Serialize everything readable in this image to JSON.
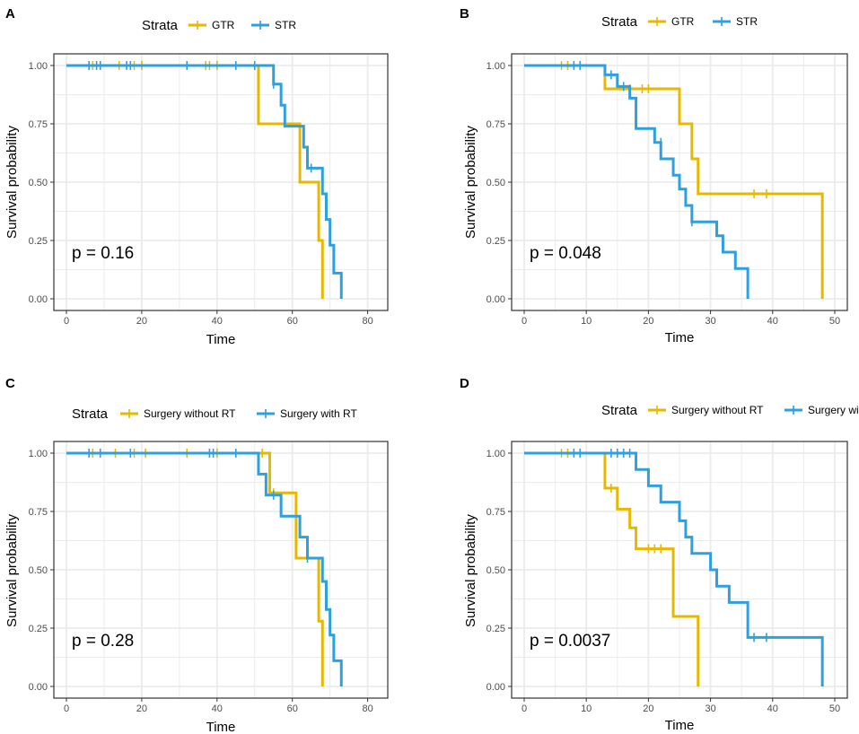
{
  "colors": {
    "gtr": "#E7B800",
    "str": "#2E9FDF",
    "grid": "#EBEBEB",
    "frame": "#333333",
    "text": "#222222"
  },
  "chart_data": [
    {
      "panel": "A",
      "type": "line",
      "title": "",
      "legend_title": "Strata",
      "legend_position": "top",
      "xlabel": "Time",
      "ylabel": "Survival probability",
      "xlim": [
        0,
        82
      ],
      "ylim": [
        0,
        1
      ],
      "xticks": [
        0,
        20,
        40,
        60,
        80
      ],
      "yticks": [
        0,
        0.25,
        0.5,
        0.75,
        1.0
      ],
      "ytick_labels": [
        "0.00",
        "0.25",
        "0.50",
        "0.75",
        "1.00"
      ],
      "pvalue": "p = 0.16",
      "series": [
        {
          "name": "GTR",
          "color_key": "gtr",
          "steps": [
            [
              0,
              1
            ],
            [
              51,
              0.75
            ],
            [
              62,
              0.5
            ],
            [
              67,
              0.25
            ],
            [
              68,
              0
            ]
          ],
          "censored": [
            [
              7,
              1
            ],
            [
              14,
              1
            ],
            [
              18,
              1
            ],
            [
              20,
              1
            ],
            [
              37,
              1
            ],
            [
              38,
              1
            ],
            [
              40,
              1
            ]
          ]
        },
        {
          "name": "STR",
          "color_key": "str",
          "steps": [
            [
              0,
              1
            ],
            [
              55,
              0.92
            ],
            [
              57,
              0.83
            ],
            [
              58,
              0.74
            ],
            [
              63,
              0.65
            ],
            [
              64,
              0.56
            ],
            [
              68,
              0.45
            ],
            [
              69,
              0.34
            ],
            [
              70,
              0.23
            ],
            [
              71,
              0.11
            ],
            [
              73,
              0
            ]
          ],
          "censored": [
            [
              6,
              1
            ],
            [
              8,
              1
            ],
            [
              9,
              1
            ],
            [
              16,
              1
            ],
            [
              17,
              1
            ],
            [
              32,
              1
            ],
            [
              45,
              1
            ],
            [
              50,
              1
            ],
            [
              55,
              0.92
            ],
            [
              65,
              0.56
            ]
          ]
        }
      ]
    },
    {
      "panel": "B",
      "type": "line",
      "title": "",
      "legend_title": "Strata",
      "legend_position": "top",
      "xlabel": "Time",
      "ylabel": "Survival probability",
      "xlim": [
        0,
        50
      ],
      "ylim": [
        0,
        1
      ],
      "xticks": [
        0,
        10,
        20,
        30,
        40,
        50
      ],
      "yticks": [
        0,
        0.25,
        0.5,
        0.75,
        1.0
      ],
      "ytick_labels": [
        "0.00",
        "0.25",
        "0.50",
        "0.75",
        "1.00"
      ],
      "pvalue": "p = 0.048",
      "series": [
        {
          "name": "GTR",
          "color_key": "gtr",
          "steps": [
            [
              0,
              1
            ],
            [
              13,
              0.9
            ],
            [
              25,
              0.75
            ],
            [
              27,
              0.6
            ],
            [
              28,
              0.45
            ],
            [
              48,
              0
            ]
          ],
          "censored": [
            [
              6,
              1
            ],
            [
              7,
              1
            ],
            [
              17,
              0.9
            ],
            [
              19,
              0.9
            ],
            [
              20,
              0.9
            ],
            [
              37,
              0.45
            ],
            [
              39,
              0.45
            ]
          ]
        },
        {
          "name": "STR",
          "color_key": "str",
          "steps": [
            [
              0,
              1
            ],
            [
              13,
              0.96
            ],
            [
              15,
              0.91
            ],
            [
              17,
              0.86
            ],
            [
              18,
              0.73
            ],
            [
              21,
              0.67
            ],
            [
              22,
              0.6
            ],
            [
              24,
              0.53
            ],
            [
              25,
              0.47
            ],
            [
              26,
              0.4
            ],
            [
              27,
              0.33
            ],
            [
              31,
              0.27
            ],
            [
              32,
              0.2
            ],
            [
              34,
              0.13
            ],
            [
              36,
              0
            ]
          ],
          "censored": [
            [
              8,
              1
            ],
            [
              9,
              1
            ],
            [
              14,
              0.96
            ],
            [
              16,
              0.91
            ],
            [
              22,
              0.67
            ],
            [
              27,
              0.33
            ]
          ]
        }
      ]
    },
    {
      "panel": "C",
      "type": "line",
      "title": "",
      "legend_title": "Strata",
      "legend_position": "top",
      "xlabel": "Time",
      "ylabel": "Survival probability",
      "xlim": [
        0,
        82
      ],
      "ylim": [
        0,
        1
      ],
      "xticks": [
        0,
        20,
        40,
        60,
        80
      ],
      "yticks": [
        0,
        0.25,
        0.5,
        0.75,
        1.0
      ],
      "ytick_labels": [
        "0.00",
        "0.25",
        "0.50",
        "0.75",
        "1.00"
      ],
      "pvalue": "p = 0.28",
      "series": [
        {
          "name": "Surgery without RT",
          "color_key": "gtr",
          "steps": [
            [
              0,
              1
            ],
            [
              54,
              0.83
            ],
            [
              61,
              0.55
            ],
            [
              67,
              0.28
            ],
            [
              68,
              0
            ]
          ],
          "censored": [
            [
              7,
              1
            ],
            [
              13,
              1
            ],
            [
              18,
              1
            ],
            [
              21,
              1
            ],
            [
              32,
              1
            ],
            [
              40,
              1
            ],
            [
              52,
              1
            ],
            [
              55,
              0.83
            ]
          ]
        },
        {
          "name": "Surgery with RT",
          "color_key": "str",
          "steps": [
            [
              0,
              1
            ],
            [
              51,
              0.91
            ],
            [
              53,
              0.82
            ],
            [
              57,
              0.73
            ],
            [
              62,
              0.64
            ],
            [
              64,
              0.55
            ],
            [
              68,
              0.45
            ],
            [
              69,
              0.33
            ],
            [
              70,
              0.22
            ],
            [
              71,
              0.11
            ],
            [
              73,
              0
            ]
          ],
          "censored": [
            [
              6,
              1
            ],
            [
              9,
              1
            ],
            [
              17,
              1
            ],
            [
              38,
              1
            ],
            [
              39,
              1
            ],
            [
              45,
              1
            ],
            [
              55,
              0.82
            ],
            [
              64,
              0.55
            ]
          ]
        }
      ]
    },
    {
      "panel": "D",
      "type": "line",
      "title": "",
      "legend_title": "Strata",
      "legend_position": "top",
      "xlabel": "Time",
      "ylabel": "Survival probability",
      "xlim": [
        0,
        50
      ],
      "ylim": [
        0,
        1
      ],
      "xticks": [
        0,
        10,
        20,
        30,
        40,
        50
      ],
      "yticks": [
        0,
        0.25,
        0.5,
        0.75,
        1.0
      ],
      "ytick_labels": [
        "0.00",
        "0.25",
        "0.50",
        "0.75",
        "1.00"
      ],
      "pvalue": "p = 0.0037",
      "series": [
        {
          "name": "Surgery without RT",
          "color_key": "gtr",
          "steps": [
            [
              0,
              1
            ],
            [
              13,
              0.85
            ],
            [
              15,
              0.76
            ],
            [
              17,
              0.68
            ],
            [
              18,
              0.59
            ],
            [
              24,
              0.3
            ],
            [
              28,
              0
            ]
          ],
          "censored": [
            [
              6,
              1
            ],
            [
              7,
              1
            ],
            [
              14,
              0.85
            ],
            [
              20,
              0.59
            ],
            [
              21,
              0.59
            ],
            [
              22,
              0.59
            ]
          ]
        },
        {
          "name": "Surgery with RT",
          "color_key": "str",
          "steps": [
            [
              0,
              1
            ],
            [
              18,
              0.93
            ],
            [
              20,
              0.86
            ],
            [
              22,
              0.79
            ],
            [
              25,
              0.71
            ],
            [
              26,
              0.64
            ],
            [
              27,
              0.57
            ],
            [
              30,
              0.5
            ],
            [
              31,
              0.43
            ],
            [
              33,
              0.36
            ],
            [
              36,
              0.21
            ],
            [
              48,
              0
            ]
          ],
          "censored": [
            [
              8,
              1
            ],
            [
              9,
              1
            ],
            [
              14,
              1
            ],
            [
              15,
              1
            ],
            [
              16,
              1
            ],
            [
              17,
              1
            ],
            [
              37,
              0.21
            ],
            [
              39,
              0.21
            ]
          ]
        }
      ]
    }
  ]
}
